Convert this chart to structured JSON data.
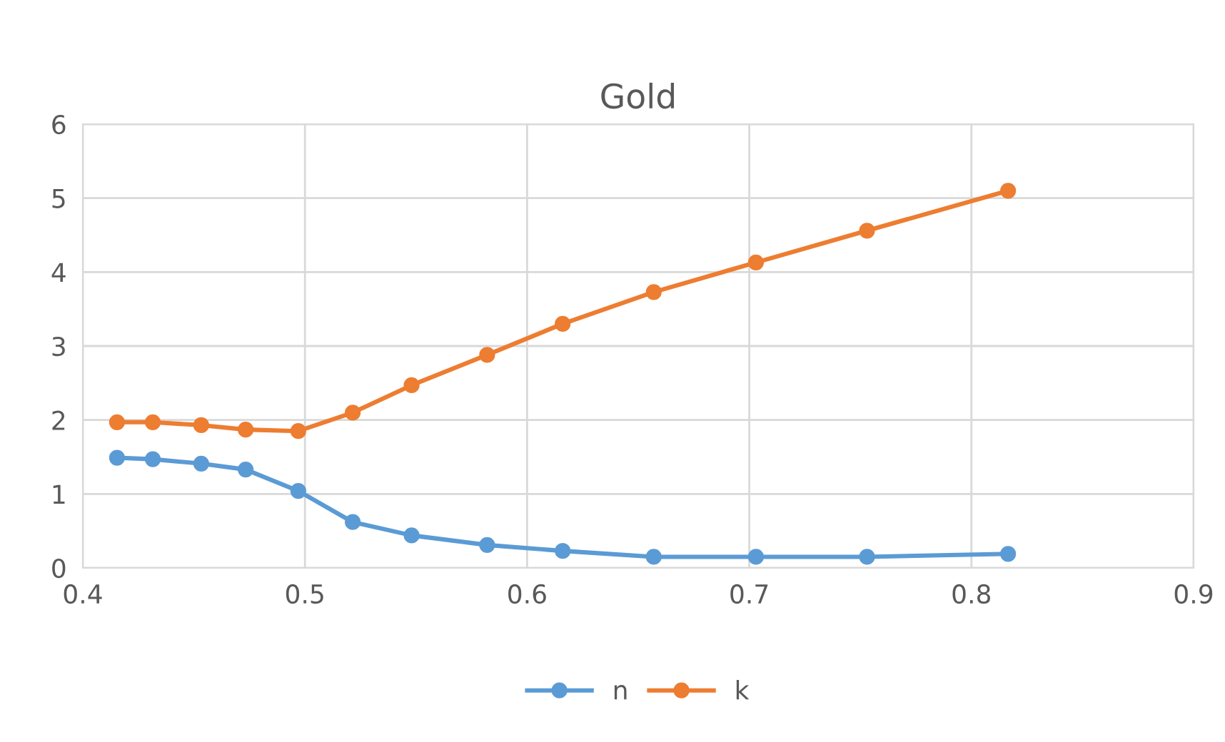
{
  "chart_data": {
    "type": "line",
    "title": "Gold",
    "x": [
      0.4154,
      0.4315,
      0.4533,
      0.4733,
      0.497,
      0.5215,
      0.548,
      0.582,
      0.616,
      0.657,
      0.703,
      0.753,
      0.8165
    ],
    "series": [
      {
        "name": "n",
        "color": "#5b9bd5",
        "values": [
          1.49,
          1.47,
          1.41,
          1.33,
          1.04,
          0.62,
          0.44,
          0.31,
          0.23,
          0.15,
          0.15,
          0.15,
          0.19
        ]
      },
      {
        "name": "k",
        "color": "#ed7d31",
        "values": [
          1.97,
          1.97,
          1.93,
          1.87,
          1.85,
          2.1,
          2.47,
          2.88,
          3.3,
          3.73,
          4.13,
          4.56,
          5.1
        ]
      }
    ],
    "xlim": [
      0.4,
      0.9
    ],
    "xticks": [
      0.4,
      0.5,
      0.6,
      0.7,
      0.8,
      0.9
    ],
    "ylim": [
      0,
      6
    ],
    "yticks": [
      0,
      1,
      2,
      3,
      4,
      5,
      6
    ],
    "grid": true,
    "legend": "bottom",
    "marker": "circle",
    "line_style": "solid"
  }
}
